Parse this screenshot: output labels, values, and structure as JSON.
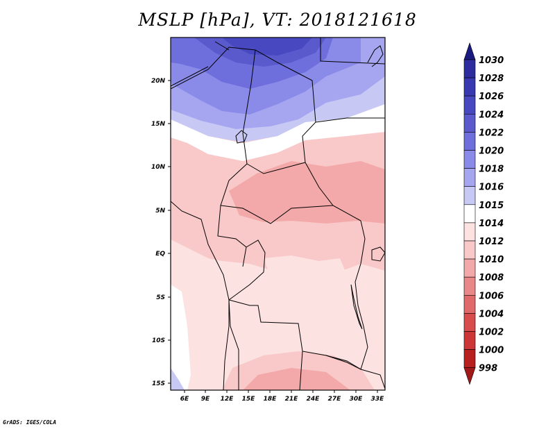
{
  "title": "MSLP [hPa], VT: 2018121618",
  "credit": "GrADS: IGES/COLA",
  "map": {
    "variable": "MSLP",
    "units": "hPa",
    "valid_time": "2018121618",
    "lon_range": [
      3.5,
      33.5
    ],
    "lat_range": [
      -16,
      24.5
    ],
    "lon_ticks": [
      "6E",
      "9E",
      "12E",
      "15E",
      "18E",
      "21E",
      "24E",
      "27E",
      "30E",
      "33E"
    ],
    "lat_ticks": [
      "20N",
      "15N",
      "10N",
      "5N",
      "EQ",
      "5S",
      "10S",
      "15S"
    ]
  },
  "colorbar": {
    "levels": [
      "1030",
      "1028",
      "1026",
      "1024",
      "1022",
      "1020",
      "1018",
      "1016",
      "1015",
      "1014",
      "1012",
      "1010",
      "1008",
      "1006",
      "1004",
      "1002",
      "1000",
      "998"
    ],
    "colors": [
      "#1a1a80",
      "#2d2da0",
      "#3838b0",
      "#4848c0",
      "#5a5acc",
      "#6e6edc",
      "#8a8ae8",
      "#a6a6f0",
      "#c8c8f5",
      "#ffffff",
      "#fde2e2",
      "#f9c8c8",
      "#f3a9a9",
      "#e98888",
      "#e06a6a",
      "#d84c4c",
      "#cc3636",
      "#b82020",
      "#a01818"
    ]
  }
}
